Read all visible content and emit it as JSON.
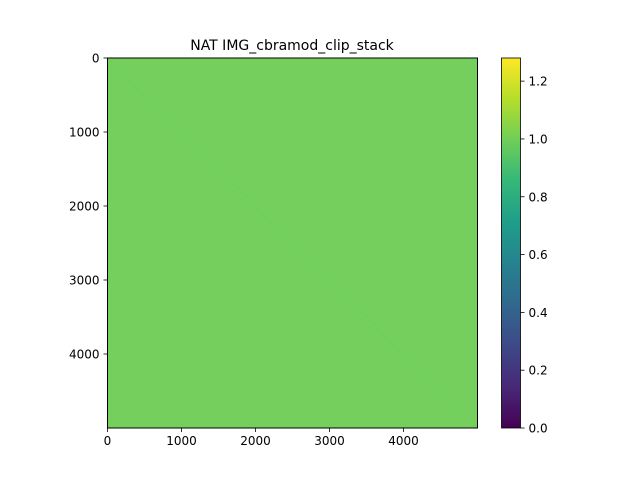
{
  "chart_data": {
    "type": "heatmap",
    "title": "NAT IMG_cbramod_clip_stack",
    "xlabel": "",
    "ylabel": "",
    "matrix_size": 5000,
    "xlim": [
      0,
      5000
    ],
    "ylim": [
      5000,
      0
    ],
    "x_ticks": [
      0,
      1000,
      2000,
      3000,
      4000
    ],
    "y_ticks": [
      0,
      1000,
      2000,
      3000,
      4000
    ],
    "x_tick_labels": [
      "0",
      "1000",
      "2000",
      "3000",
      "4000"
    ],
    "y_tick_labels": [
      "0",
      "1000",
      "2000",
      "3000",
      "4000"
    ],
    "fill_value": 1.0,
    "diagonal_value": 0.98,
    "colormap": "viridis",
    "color_fill": "#74cf5d",
    "color_diagonal": "#6ccd60",
    "colorbar": {
      "vmin": 0.0,
      "vmax": 1.28,
      "ticks": [
        0.0,
        0.2,
        0.4,
        0.6,
        0.8,
        1.0,
        1.2
      ],
      "tick_labels": [
        "0.0",
        "0.2",
        "0.4",
        "0.6",
        "0.8",
        "1.0",
        "1.2"
      ],
      "stops": [
        "#440154",
        "#482878",
        "#3e4989",
        "#31688e",
        "#26828e",
        "#1f9e89",
        "#35b779",
        "#6ece58",
        "#b5de2b",
        "#fde725"
      ]
    },
    "grid": false,
    "legend": "none"
  }
}
